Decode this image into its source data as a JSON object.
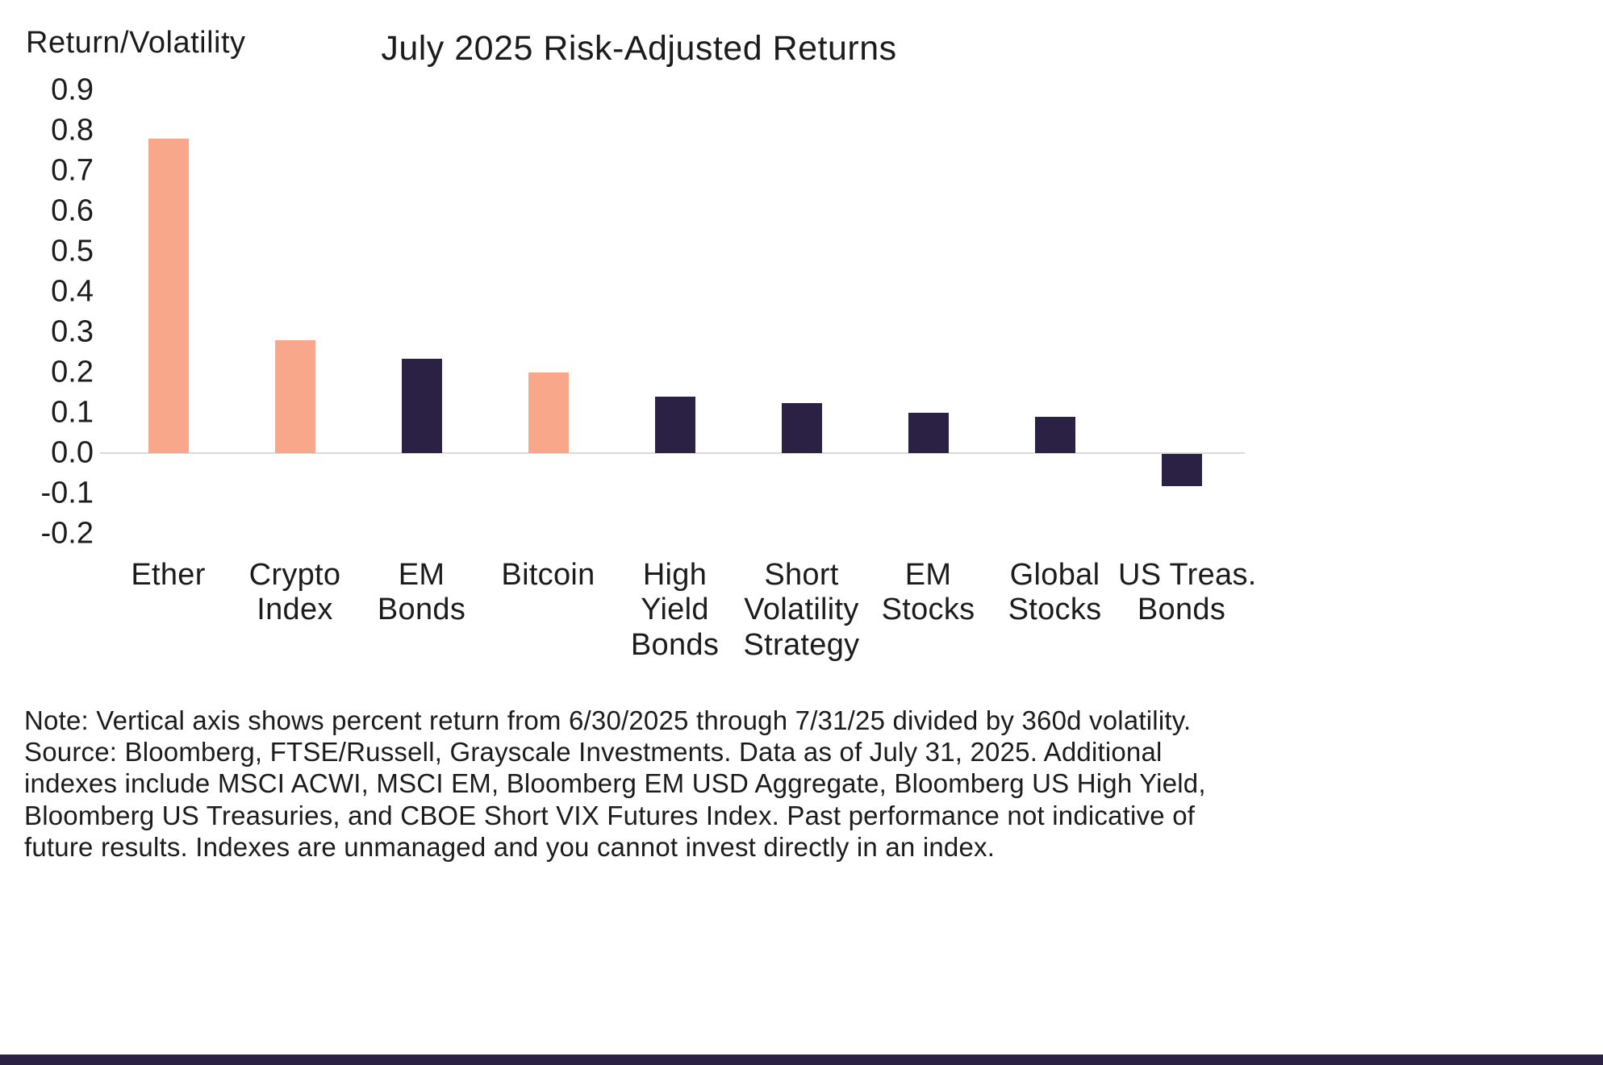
{
  "colors": {
    "salmon": "#F8A78A",
    "dark": "#2A2144",
    "zero_line": "#DADADA",
    "footer_bar": "#2A2144"
  },
  "header": {
    "ylabel": "Return/Volatility",
    "title": "July 2025 Risk-Adjusted Returns"
  },
  "chart_data": {
    "type": "bar",
    "title": "July 2025 Risk-Adjusted Returns",
    "ylabel": "Return/Volatility",
    "xlabel": "",
    "ylim": [
      -0.2,
      0.9
    ],
    "ytick_step": 0.1,
    "grid": false,
    "legend": false,
    "ytick_labels": [
      "0.9",
      "0.8",
      "0.7",
      "0.6",
      "0.5",
      "0.4",
      "0.3",
      "0.2",
      "0.1",
      "0.0",
      "-0.1",
      "-0.2"
    ],
    "categories": [
      "Ether",
      "Crypto Index",
      "EM Bonds",
      "Bitcoin",
      "High Yield Bonds",
      "Short Volatility Strategy",
      "EM Stocks",
      "Global Stocks",
      "US Treas. Bonds"
    ],
    "category_label_lines": [
      [
        "Ether"
      ],
      [
        "Crypto",
        "Index"
      ],
      [
        "EM",
        "Bonds"
      ],
      [
        "Bitcoin"
      ],
      [
        "High",
        "Yield",
        "Bonds"
      ],
      [
        "Short",
        "Volatility",
        "Strategy"
      ],
      [
        "EM",
        "Stocks"
      ],
      [
        "Global",
        "Stocks"
      ],
      [
        "US Treas.",
        "Bonds"
      ]
    ],
    "values": [
      0.78,
      0.28,
      0.235,
      0.2,
      0.14,
      0.125,
      0.1,
      0.09,
      -0.08
    ],
    "bar_color_keys": [
      "salmon",
      "salmon",
      "dark",
      "salmon",
      "dark",
      "dark",
      "dark",
      "dark",
      "dark"
    ]
  },
  "footnote": {
    "lines": [
      "Note: Vertical axis shows percent return from 6/30/2025 through 7/31/25 divided by 360d volatility.",
      "Source: Bloomberg, FTSE/Russell, Grayscale Investments. Data as of July 31, 2025. Additional indexes include MSCI ACWI, MSCI EM, Bloomberg EM USD Aggregate, Bloomberg US High Yield, Bloomberg US Treasuries, and CBOE Short VIX Futures Index. Past performance not indicative of future results. Indexes are unmanaged and you cannot invest directly in an index."
    ]
  }
}
